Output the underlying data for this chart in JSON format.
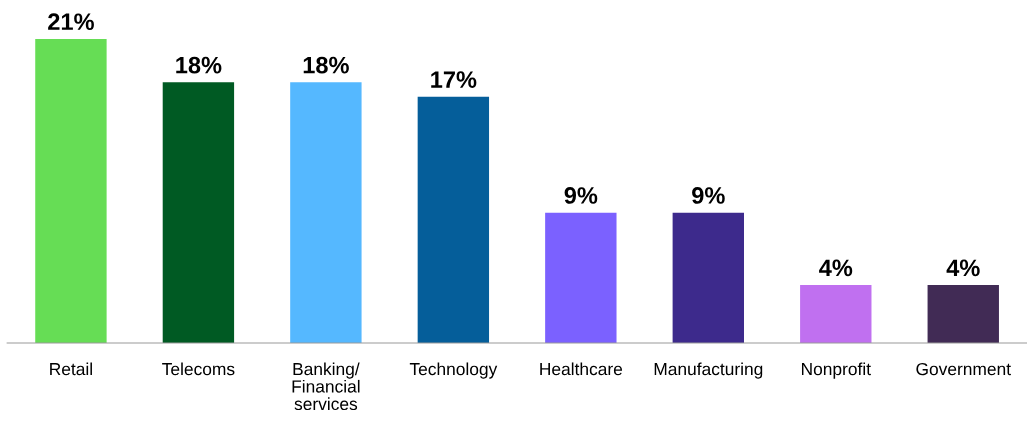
{
  "chart_data": {
    "type": "bar",
    "categories": [
      "Retail",
      "Telecoms",
      "Banking/\nFinancial\nservices",
      "Technology",
      "Healthcare",
      "Manufacturing",
      "Nonprofit",
      "Government"
    ],
    "values": [
      21,
      18,
      18,
      17,
      9,
      9,
      4,
      4
    ],
    "value_labels": [
      "21%",
      "18%",
      "18%",
      "17%",
      "9%",
      "9%",
      "4%",
      "4%"
    ],
    "colors": [
      "#66dd55",
      "#005a23",
      "#55b8ff",
      "#055e9a",
      "#7b61ff",
      "#3d2a8c",
      "#c070f0",
      "#412b55"
    ],
    "tick_labels": "x",
    "grid": false,
    "legend": false
  }
}
